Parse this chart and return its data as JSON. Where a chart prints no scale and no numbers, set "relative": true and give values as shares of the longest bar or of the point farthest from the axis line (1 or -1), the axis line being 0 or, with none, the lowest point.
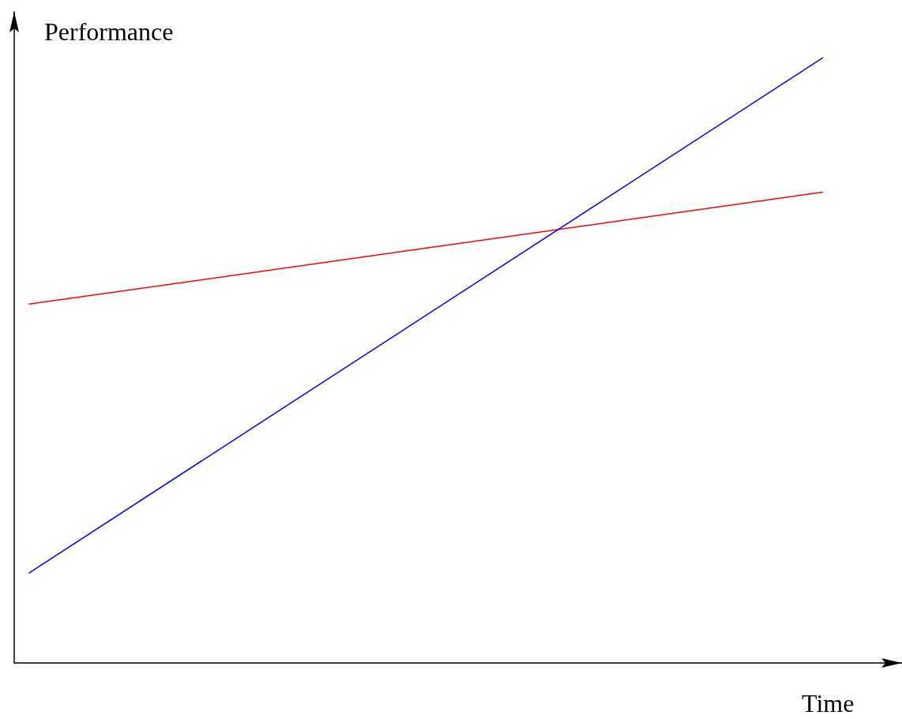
{
  "chart_data": {
    "type": "line",
    "xlabel": "Time",
    "ylabel": "Performance",
    "relative": true,
    "categories": [
      null,
      null
    ],
    "marker": "none",
    "series": [
      {
        "color": "#ff0000",
        "values": [
          0.593,
          0.778
        ]
      },
      {
        "color": "#0000ff",
        "values": [
          0.149,
          1
        ]
      }
    ]
  }
}
